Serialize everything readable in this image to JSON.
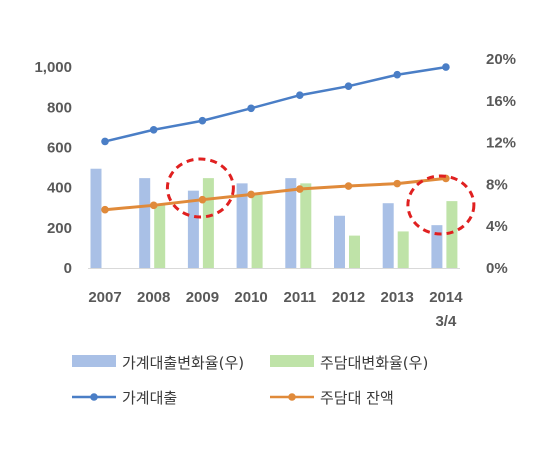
{
  "chart_data": {
    "type": "bar+line",
    "categories": [
      "2007",
      "2008",
      "2009",
      "2010",
      "2011",
      "2012",
      "2013",
      "2014"
    ],
    "category_sublabels": [
      "",
      "",
      "",
      "",
      "",
      "",
      "",
      "3/4"
    ],
    "left_axis": {
      "ticks": [
        "0",
        "200",
        "400",
        "600",
        "800",
        "1,000"
      ],
      "ylim": [
        0,
        1100
      ]
    },
    "right_axis": {
      "ticks": [
        "0%",
        "4%",
        "8%",
        "12%",
        "16%",
        "20%"
      ],
      "ylim": [
        0,
        20
      ]
    },
    "series": [
      {
        "name": "가계대출변화율(우)",
        "kind": "bar",
        "axis": "right",
        "color": "#a9c0e6",
        "values": [
          9.5,
          8.6,
          7.4,
          8.1,
          8.6,
          5.0,
          6.2,
          4.1
        ]
      },
      {
        "name": "주담대변화율(우)",
        "kind": "bar",
        "axis": "right",
        "color": "#bfe3a8",
        "values": [
          0,
          6.0,
          8.6,
          7.0,
          8.1,
          3.1,
          3.5,
          6.4
        ]
      },
      {
        "name": "가계대출",
        "kind": "line",
        "axis": "left",
        "color": "#4a7ec6",
        "values": [
          630,
          688,
          733,
          795,
          860,
          905,
          962,
          1000
        ]
      },
      {
        "name": "주담대 잔액",
        "kind": "line",
        "axis": "left",
        "color": "#e08a3a",
        "values": [
          290,
          312,
          340,
          366,
          393,
          408,
          420,
          446
        ]
      }
    ],
    "annotations": [
      {
        "type": "dashed-circle",
        "color": "#e02020",
        "category": "2009"
      },
      {
        "type": "dashed-circle",
        "color": "#e02020",
        "category": "2014"
      }
    ],
    "grid": false,
    "legend": "bottom"
  }
}
